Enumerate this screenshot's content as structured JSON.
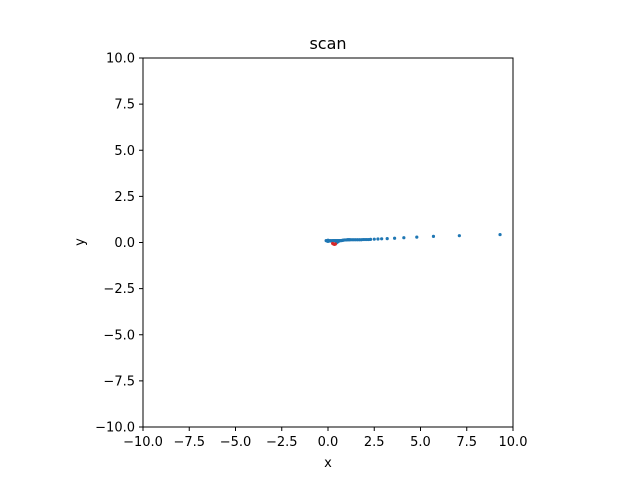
{
  "chart_data": {
    "type": "scatter",
    "title": "scan",
    "xlabel": "x",
    "ylabel": "y",
    "xlim": [
      -10,
      10
    ],
    "ylim": [
      -10,
      10
    ],
    "xticks": [
      "−10.0",
      "−7.5",
      "−5.0",
      "−2.5",
      "0.0",
      "2.5",
      "5.0",
      "7.5",
      "10.0"
    ],
    "xtick_values": [
      -10,
      -7.5,
      -5,
      -2.5,
      0,
      2.5,
      5,
      7.5,
      10
    ],
    "yticks": [
      "10.0",
      "7.5",
      "5.0",
      "2.5",
      "0.0",
      "−2.5",
      "−5.0",
      "−7.5",
      "−10.0"
    ],
    "ytick_values": [
      10,
      7.5,
      5,
      2.5,
      0,
      -2.5,
      -5,
      -7.5,
      -10
    ],
    "grid": false,
    "series": [
      {
        "color": "#1f77b4",
        "points": [
          [
            -0.1,
            0.1
          ],
          [
            -0.05,
            0.08
          ],
          [
            0.0,
            0.06
          ],
          [
            0.0,
            0.12
          ],
          [
            0.05,
            0.1
          ],
          [
            0.1,
            0.08
          ],
          [
            0.15,
            0.1
          ],
          [
            0.2,
            0.09
          ],
          [
            0.25,
            0.1
          ],
          [
            0.3,
            0.1
          ],
          [
            0.35,
            0.1
          ],
          [
            0.4,
            0.1
          ],
          [
            0.45,
            0.1
          ],
          [
            0.5,
            0.1
          ],
          [
            0.55,
            0.1
          ],
          [
            0.6,
            0.1
          ],
          [
            0.65,
            0.1
          ],
          [
            0.7,
            0.1
          ],
          [
            0.75,
            0.11
          ],
          [
            0.8,
            0.12
          ],
          [
            0.85,
            0.13
          ],
          [
            0.9,
            0.14
          ],
          [
            0.95,
            0.14
          ],
          [
            1.0,
            0.14
          ],
          [
            1.05,
            0.15
          ],
          [
            1.1,
            0.15
          ],
          [
            1.15,
            0.15
          ],
          [
            1.2,
            0.15
          ],
          [
            1.3,
            0.15
          ],
          [
            1.4,
            0.15
          ],
          [
            1.5,
            0.15
          ],
          [
            1.6,
            0.15
          ],
          [
            1.7,
            0.15
          ],
          [
            1.8,
            0.15
          ],
          [
            1.9,
            0.16
          ],
          [
            2.0,
            0.16
          ],
          [
            2.1,
            0.16
          ],
          [
            2.2,
            0.16
          ],
          [
            2.3,
            0.17
          ],
          [
            2.5,
            0.18
          ],
          [
            2.7,
            0.19
          ],
          [
            2.9,
            0.2
          ],
          [
            3.2,
            0.21
          ],
          [
            3.6,
            0.23
          ],
          [
            4.1,
            0.26
          ],
          [
            4.8,
            0.29
          ],
          [
            5.7,
            0.33
          ],
          [
            7.1,
            0.37
          ],
          [
            9.3,
            0.43
          ],
          [
            0.5,
            0.02
          ],
          [
            0.45,
            -0.02
          ],
          [
            0.55,
            0.05
          ]
        ]
      },
      {
        "color": "#d62728",
        "points": [
          [
            0.25,
            -0.05
          ],
          [
            0.3,
            -0.08
          ],
          [
            0.35,
            -0.1
          ],
          [
            0.4,
            -0.08
          ]
        ]
      }
    ]
  }
}
